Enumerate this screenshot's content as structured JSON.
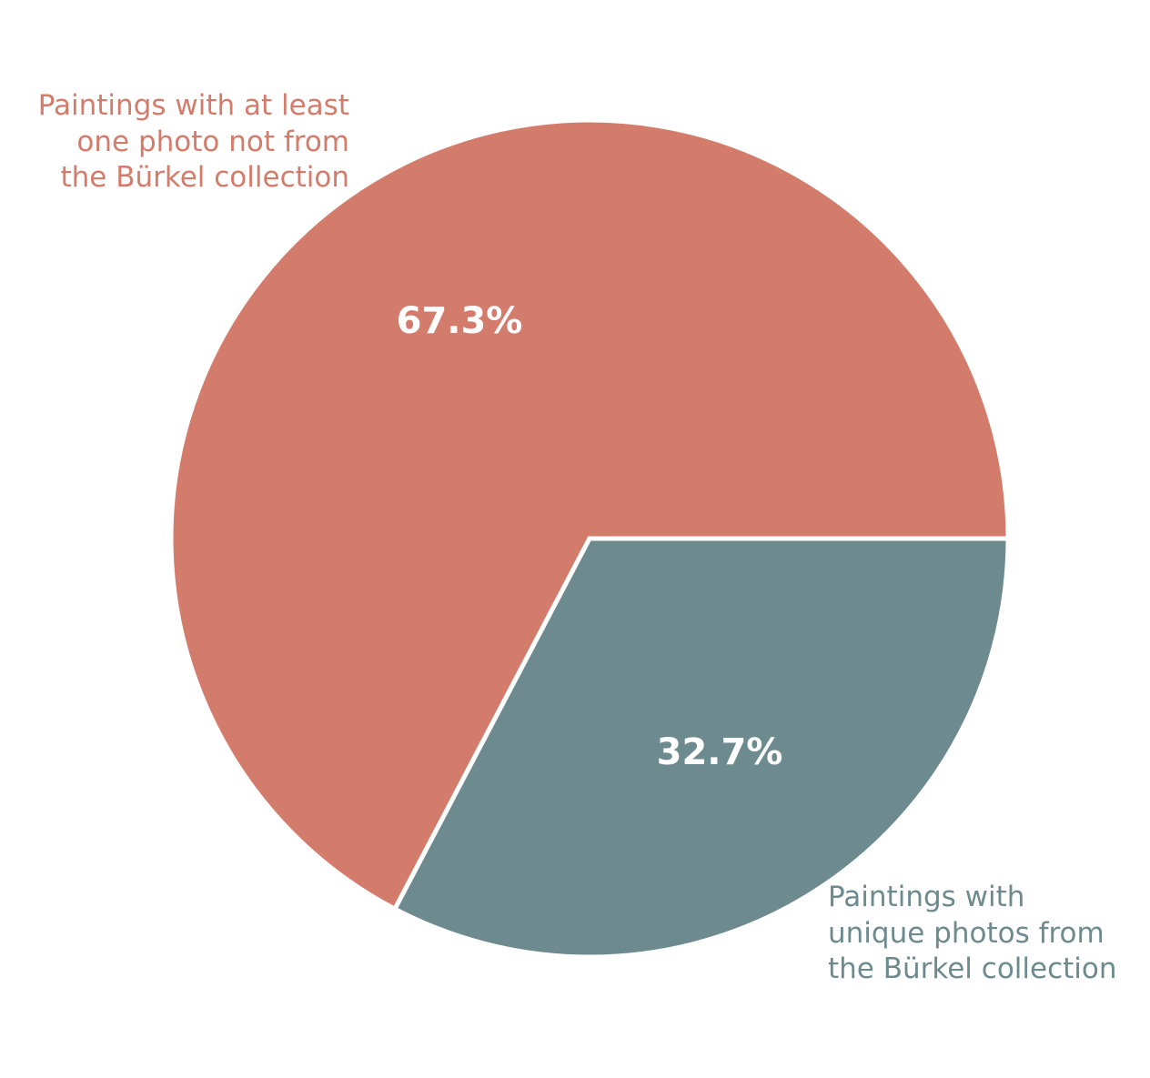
{
  "chart_data": {
    "type": "pie",
    "title": "",
    "slices": [
      {
        "label_lines": [
          "Paintings with at least",
          "one photo not from",
          "the Bürkel collection"
        ],
        "value": 67.3,
        "value_label": "67.3%",
        "color": "#d37c6b"
      },
      {
        "label_lines": [
          "Paintings with",
          "unique photos from",
          "the Bürkel collection"
        ],
        "value": 32.7,
        "value_label": "32.7%",
        "color": "#6d8a8e"
      }
    ]
  }
}
